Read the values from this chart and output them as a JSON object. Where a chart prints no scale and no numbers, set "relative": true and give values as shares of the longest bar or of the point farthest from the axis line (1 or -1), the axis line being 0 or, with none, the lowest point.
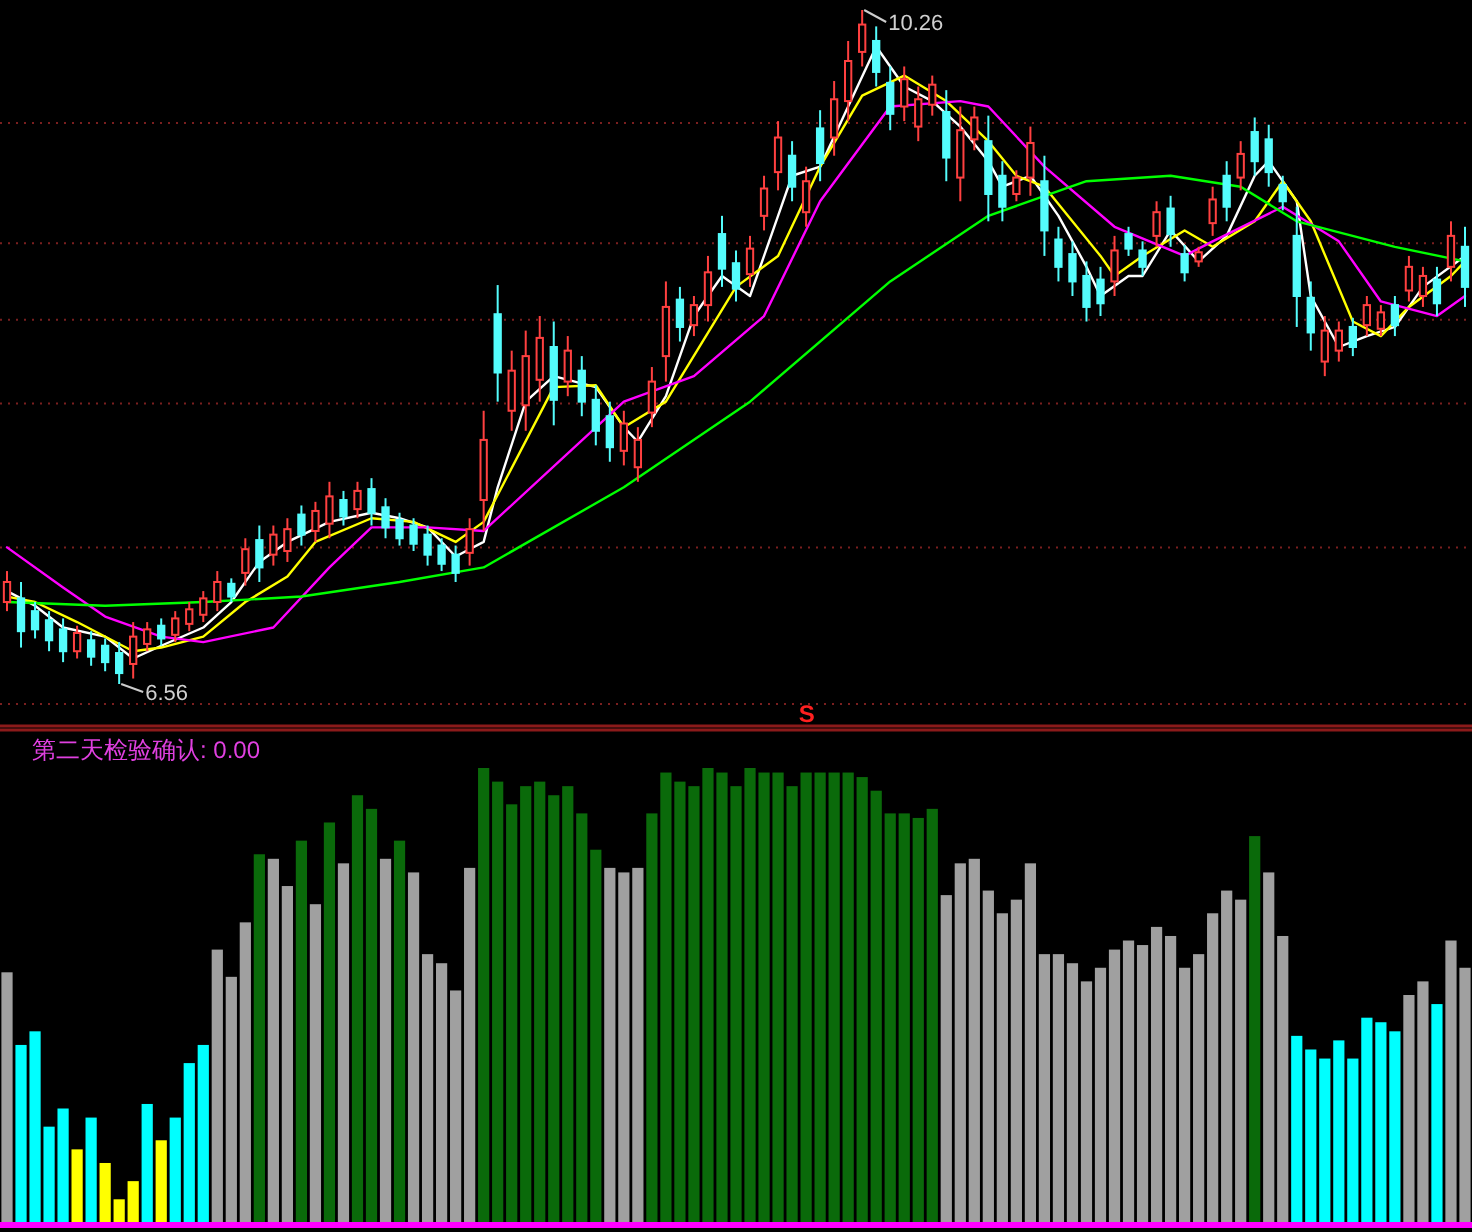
{
  "chart_data": [
    {
      "type": "candlestick",
      "categories": [
        null,
        null,
        null,
        null,
        null,
        null,
        null,
        null,
        null,
        null,
        null,
        null,
        null,
        null,
        null,
        null,
        null,
        null,
        null,
        null,
        null,
        null,
        null,
        null,
        null,
        null,
        null,
        null,
        null,
        null,
        null,
        null,
        null,
        null,
        null,
        null,
        null,
        null,
        null,
        null,
        null,
        null,
        null,
        null,
        null,
        null,
        null,
        null,
        null,
        null,
        null,
        null,
        null,
        null,
        null,
        null,
        null,
        null,
        null,
        null,
        null,
        null,
        null,
        null,
        null,
        null,
        null,
        null,
        null,
        null,
        null,
        null,
        null,
        null,
        null,
        null,
        null,
        null,
        null,
        null,
        null,
        null,
        null,
        null,
        null,
        null,
        null,
        null,
        null,
        null,
        null,
        null,
        null,
        null,
        null,
        null,
        null,
        null,
        null,
        null,
        null,
        null,
        null,
        null,
        null
      ],
      "ohlc": [
        [
          7.01,
          7.18,
          6.96,
          7.12
        ],
        [
          7.03,
          7.12,
          6.76,
          6.85
        ],
        [
          6.96,
          7.01,
          6.81,
          6.86
        ],
        [
          6.91,
          6.96,
          6.74,
          6.8
        ],
        [
          6.86,
          6.92,
          6.68,
          6.74
        ],
        [
          6.74,
          6.88,
          6.7,
          6.84
        ],
        [
          6.8,
          6.85,
          6.66,
          6.71
        ],
        [
          6.77,
          6.81,
          6.63,
          6.68
        ],
        [
          6.73,
          6.79,
          6.56,
          6.62
        ],
        [
          6.67,
          6.9,
          6.59,
          6.82
        ],
        [
          6.78,
          6.9,
          6.74,
          6.86
        ],
        [
          6.88,
          6.92,
          6.77,
          6.81
        ],
        [
          6.83,
          6.96,
          6.79,
          6.92
        ],
        [
          6.89,
          7.01,
          6.85,
          6.97
        ],
        [
          6.94,
          7.07,
          6.9,
          7.03
        ],
        [
          7.01,
          7.18,
          6.96,
          7.12
        ],
        [
          7.11,
          7.14,
          7.01,
          7.04
        ],
        [
          7.17,
          7.36,
          7.1,
          7.3
        ],
        [
          7.35,
          7.43,
          7.12,
          7.2
        ],
        [
          7.27,
          7.43,
          7.21,
          7.38
        ],
        [
          7.29,
          7.47,
          7.23,
          7.41
        ],
        [
          7.49,
          7.54,
          7.32,
          7.38
        ],
        [
          7.4,
          7.56,
          7.34,
          7.51
        ],
        [
          7.44,
          7.67,
          7.36,
          7.59
        ],
        [
          7.57,
          7.62,
          7.43,
          7.48
        ],
        [
          7.52,
          7.67,
          7.47,
          7.62
        ],
        [
          7.63,
          7.69,
          7.43,
          7.5
        ],
        [
          7.53,
          7.58,
          7.36,
          7.42
        ],
        [
          7.46,
          7.5,
          7.32,
          7.36
        ],
        [
          7.43,
          7.47,
          7.29,
          7.33
        ],
        [
          7.38,
          7.43,
          7.21,
          7.27
        ],
        [
          7.32,
          7.36,
          7.18,
          7.22
        ],
        [
          7.27,
          7.32,
          7.12,
          7.17
        ],
        [
          7.28,
          7.47,
          7.21,
          7.41
        ],
        [
          7.57,
          8.06,
          7.4,
          7.9
        ],
        [
          8.59,
          8.75,
          8.11,
          8.27
        ],
        [
          8.06,
          8.39,
          7.95,
          8.28
        ],
        [
          8.09,
          8.5,
          7.95,
          8.36
        ],
        [
          8.23,
          8.58,
          8.11,
          8.46
        ],
        [
          8.41,
          8.55,
          7.98,
          8.12
        ],
        [
          8.22,
          8.47,
          8.14,
          8.39
        ],
        [
          8.28,
          8.36,
          8.03,
          8.11
        ],
        [
          8.12,
          8.2,
          7.87,
          7.95
        ],
        [
          8.03,
          8.11,
          7.78,
          7.86
        ],
        [
          7.84,
          8.06,
          7.76,
          7.99
        ],
        [
          7.75,
          7.97,
          7.67,
          7.9
        ],
        [
          8.05,
          8.3,
          7.97,
          8.22
        ],
        [
          8.36,
          8.77,
          8.22,
          8.63
        ],
        [
          8.67,
          8.74,
          8.44,
          8.52
        ],
        [
          8.53,
          8.69,
          8.47,
          8.64
        ],
        [
          8.64,
          8.91,
          8.55,
          8.82
        ],
        [
          9.03,
          9.13,
          8.74,
          8.84
        ],
        [
          8.87,
          8.94,
          8.66,
          8.73
        ],
        [
          8.81,
          9.02,
          8.74,
          8.95
        ],
        [
          9.13,
          9.35,
          9.05,
          9.28
        ],
        [
          9.37,
          9.65,
          9.27,
          9.56
        ],
        [
          9.46,
          9.54,
          9.21,
          9.29
        ],
        [
          9.15,
          9.4,
          9.07,
          9.32
        ],
        [
          9.61,
          9.71,
          9.32,
          9.42
        ],
        [
          9.56,
          9.87,
          9.46,
          9.77
        ],
        [
          9.76,
          10.09,
          9.65,
          9.98
        ],
        [
          10.03,
          10.26,
          9.95,
          10.18
        ],
        [
          10.09,
          10.17,
          9.84,
          9.92
        ],
        [
          9.86,
          9.95,
          9.6,
          9.69
        ],
        [
          9.73,
          9.95,
          9.65,
          9.88
        ],
        [
          9.62,
          9.84,
          9.54,
          9.77
        ],
        [
          9.74,
          9.9,
          9.68,
          9.85
        ],
        [
          9.7,
          9.82,
          9.32,
          9.45
        ],
        [
          9.34,
          9.73,
          9.21,
          9.6
        ],
        [
          9.55,
          9.73,
          9.49,
          9.67
        ],
        [
          9.54,
          9.68,
          9.1,
          9.25
        ],
        [
          9.35,
          9.43,
          9.1,
          9.18
        ],
        [
          9.25,
          9.38,
          9.21,
          9.34
        ],
        [
          9.34,
          9.62,
          9.24,
          9.53
        ],
        [
          9.32,
          9.46,
          8.91,
          9.05
        ],
        [
          9.0,
          9.07,
          8.77,
          8.85
        ],
        [
          8.92,
          8.99,
          8.69,
          8.77
        ],
        [
          8.8,
          8.88,
          8.55,
          8.63
        ],
        [
          8.78,
          8.85,
          8.58,
          8.65
        ],
        [
          8.77,
          9.02,
          8.69,
          8.94
        ],
        [
          9.03,
          9.07,
          8.91,
          8.95
        ],
        [
          8.94,
          8.99,
          8.8,
          8.85
        ],
        [
          9.02,
          9.21,
          8.96,
          9.15
        ],
        [
          9.17,
          9.24,
          8.96,
          9.03
        ],
        [
          8.92,
          8.97,
          8.77,
          8.82
        ],
        [
          8.88,
          8.96,
          8.85,
          8.93
        ],
        [
          9.09,
          9.29,
          9.02,
          9.22
        ],
        [
          9.35,
          9.43,
          9.1,
          9.18
        ],
        [
          9.34,
          9.54,
          9.27,
          9.47
        ],
        [
          9.59,
          9.67,
          9.35,
          9.43
        ],
        [
          9.55,
          9.63,
          9.29,
          9.37
        ],
        [
          9.3,
          9.35,
          9.16,
          9.21
        ],
        [
          9.02,
          9.18,
          8.52,
          8.69
        ],
        [
          8.68,
          8.77,
          8.39,
          8.49
        ],
        [
          8.33,
          8.58,
          8.25,
          8.5
        ],
        [
          8.39,
          8.55,
          8.33,
          8.5
        ],
        [
          8.52,
          8.57,
          8.36,
          8.41
        ],
        [
          8.53,
          8.69,
          8.47,
          8.64
        ],
        [
          8.51,
          8.64,
          8.47,
          8.6
        ],
        [
          8.64,
          8.69,
          8.47,
          8.53
        ],
        [
          8.72,
          8.91,
          8.66,
          8.85
        ],
        [
          8.69,
          8.85,
          8.63,
          8.8
        ],
        [
          8.78,
          8.85,
          8.58,
          8.65
        ],
        [
          8.85,
          9.1,
          8.77,
          9.02
        ],
        [
          8.96,
          9.07,
          8.63,
          8.74
        ]
      ],
      "series": [
        {
          "type": "line",
          "color": "#ffffff",
          "values": [
            7.07,
            null,
            6.99,
            null,
            6.87,
            null,
            null,
            6.82,
            null,
            6.7,
            null,
            6.77,
            null,
            null,
            6.87,
            null,
            7.01,
            null,
            7.23,
            null,
            7.34,
            null,
            null,
            7.45,
            null,
            null,
            7.5,
            null,
            7.47,
            null,
            7.42,
            null,
            7.26,
            null,
            7.34,
            7.64,
            null,
            8.11,
            null,
            8.25,
            null,
            null,
            8.19,
            null,
            7.97,
            7.89,
            null,
            8.14,
            null,
            8.58,
            null,
            8.8,
            null,
            8.69,
            null,
            9.13,
            9.35,
            null,
            9.4,
            null,
            9.73,
            null,
            10.06,
            null,
            9.84,
            null,
            9.76,
            null,
            9.62,
            null,
            9.43,
            9.29,
            null,
            9.35,
            null,
            9.13,
            null,
            8.85,
            8.69,
            null,
            8.8,
            8.8,
            null,
            9.05,
            null,
            8.88,
            null,
            9.02,
            null,
            9.35,
            9.43,
            null,
            9.21,
            8.69,
            null,
            8.41,
            null,
            8.47,
            null,
            8.52,
            null,
            8.74,
            null,
            null,
            8.91
          ]
        },
        {
          "type": "line",
          "color": "#ffff00",
          "values": [
            7.04,
            null,
            7.01,
            null,
            null,
            6.9,
            null,
            null,
            null,
            6.74,
            null,
            6.76,
            null,
            null,
            6.82,
            null,
            null,
            7.01,
            null,
            null,
            7.15,
            null,
            7.34,
            null,
            null,
            null,
            7.47,
            null,
            null,
            7.45,
            null,
            null,
            7.34,
            null,
            7.45,
            null,
            null,
            null,
            null,
            8.19,
            null,
            null,
            8.2,
            null,
            7.97,
            null,
            null,
            8.11,
            null,
            null,
            null,
            null,
            8.74,
            null,
            null,
            8.91,
            null,
            null,
            9.4,
            null,
            null,
            9.79,
            null,
            null,
            9.9,
            null,
            null,
            9.76,
            null,
            null,
            9.54,
            null,
            9.35,
            null,
            9.29,
            null,
            null,
            null,
            8.91,
            8.8,
            null,
            8.91,
            null,
            null,
            9.05,
            null,
            8.96,
            null,
            null,
            9.1,
            null,
            9.32,
            null,
            9.1,
            null,
            null,
            8.55,
            null,
            8.47,
            null,
            8.63,
            null,
            null,
            8.8,
            8.88
          ]
        },
        {
          "type": "line",
          "color": "#ff00ff",
          "values": [
            7.31,
            null,
            null,
            null,
            7.09,
            null,
            null,
            6.93,
            null,
            null,
            null,
            6.82,
            null,
            null,
            6.79,
            null,
            null,
            null,
            null,
            6.87,
            null,
            null,
            null,
            7.2,
            null,
            null,
            7.42,
            null,
            null,
            null,
            7.42,
            null,
            null,
            null,
            7.4,
            null,
            null,
            null,
            null,
            null,
            null,
            null,
            null,
            null,
            8.11,
            null,
            null,
            null,
            null,
            8.25,
            null,
            null,
            null,
            null,
            8.58,
            null,
            null,
            null,
            9.21,
            null,
            null,
            null,
            null,
            9.73,
            null,
            null,
            null,
            null,
            9.76,
            null,
            9.73,
            null,
            null,
            null,
            9.4,
            null,
            null,
            null,
            null,
            9.07,
            null,
            null,
            null,
            null,
            8.91,
            null,
            8.99,
            null,
            null,
            null,
            null,
            9.18,
            null,
            null,
            null,
            8.99,
            null,
            null,
            8.66,
            null,
            null,
            null,
            8.58,
            null,
            8.69
          ]
        },
        {
          "type": "line",
          "color": "#00ff00",
          "values": [
            7.01,
            null,
            null,
            null,
            null,
            null,
            null,
            6.99,
            null,
            null,
            null,
            null,
            null,
            null,
            7.01,
            null,
            null,
            null,
            null,
            null,
            null,
            7.04,
            null,
            null,
            null,
            null,
            null,
            null,
            7.12,
            null,
            null,
            null,
            null,
            null,
            7.2,
            null,
            null,
            null,
            null,
            null,
            null,
            null,
            null,
            null,
            7.64,
            null,
            null,
            null,
            null,
            null,
            null,
            null,
            null,
            8.11,
            null,
            null,
            null,
            null,
            null,
            null,
            null,
            null,
            null,
            8.77,
            null,
            null,
            null,
            null,
            null,
            null,
            9.13,
            null,
            null,
            null,
            null,
            null,
            null,
            9.32,
            null,
            null,
            null,
            null,
            null,
            9.35,
            null,
            null,
            null,
            null,
            9.29,
            null,
            null,
            null,
            9.1,
            null,
            null,
            null,
            null,
            null,
            null,
            8.96,
            null,
            null,
            null,
            null,
            8.88
          ]
        }
      ],
      "yticks": [
        {
          "value": 9.64,
          "label": null
        },
        {
          "value": 8.98,
          "label": null
        },
        {
          "value": 8.56,
          "label": null
        },
        {
          "value": 8.1,
          "label": null
        },
        {
          "value": 7.31,
          "label": null
        },
        {
          "value": 6.45,
          "label": null
        }
      ],
      "grid": "y",
      "annotations": [
        "10.26",
        "6.56",
        "S"
      ]
    },
    {
      "type": "bar",
      "categories": [
        null,
        null,
        null,
        null,
        null,
        null,
        null,
        null,
        null,
        null,
        null,
        null,
        null,
        null,
        null,
        null,
        null,
        null,
        null,
        null,
        null,
        null,
        null,
        null,
        null,
        null,
        null,
        null,
        null,
        null,
        null,
        null,
        null,
        null,
        null,
        null,
        null,
        null,
        null,
        null,
        null,
        null,
        null,
        null,
        null,
        null,
        null,
        null,
        null,
        null,
        null,
        null,
        null,
        null,
        null,
        null,
        null,
        null,
        null,
        null,
        null,
        null,
        null,
        null,
        null,
        null,
        null,
        null,
        null,
        null,
        null,
        null,
        null,
        null,
        null,
        null,
        null,
        null,
        null,
        null,
        null,
        null,
        null,
        null,
        null,
        null,
        null,
        null,
        null,
        null,
        null,
        null,
        null,
        null,
        null,
        null,
        null,
        null,
        null,
        null,
        null,
        null,
        null,
        null,
        null
      ],
      "relative": true,
      "values": [
        0.55,
        0.39,
        0.42,
        0.21,
        0.25,
        0.16,
        0.23,
        0.13,
        0.05,
        0.09,
        0.26,
        0.18,
        0.23,
        0.35,
        0.39,
        0.6,
        0.54,
        0.66,
        0.81,
        0.8,
        0.74,
        0.84,
        0.7,
        0.88,
        0.79,
        0.94,
        0.91,
        0.8,
        0.84,
        0.77,
        0.59,
        0.57,
        0.51,
        0.78,
        1,
        0.97,
        0.92,
        0.96,
        0.97,
        0.94,
        0.96,
        0.9,
        0.82,
        0.78,
        0.77,
        0.78,
        0.9,
        0.99,
        0.97,
        0.96,
        1,
        0.99,
        0.96,
        1,
        0.99,
        0.99,
        0.96,
        0.99,
        0.99,
        0.99,
        0.99,
        0.98,
        0.95,
        0.9,
        0.9,
        0.89,
        0.91,
        0.72,
        0.79,
        0.8,
        0.73,
        0.68,
        0.71,
        0.79,
        0.59,
        0.59,
        0.57,
        0.53,
        0.56,
        0.6,
        0.62,
        0.61,
        0.65,
        0.63,
        0.56,
        0.59,
        0.68,
        0.73,
        0.71,
        0.85,
        0.77,
        0.63,
        0.41,
        0.38,
        0.36,
        0.4,
        0.36,
        0.45,
        0.44,
        0.42,
        0.5,
        0.53,
        0.48,
        0.62,
        0.56
      ],
      "colors": [
        "#a0a0a0",
        "#00ffff",
        "#00ffff",
        "#00ffff",
        "#00ffff",
        "#ffff00",
        "#00ffff",
        "#ffff00",
        "#ffff00",
        "#ffff00",
        "#00ffff",
        "#ffff00",
        "#00ffff",
        "#00ffff",
        "#00ffff",
        "#a0a0a0",
        "#a0a0a0",
        "#a0a0a0",
        "#0a6a0a",
        "#a0a0a0",
        "#a0a0a0",
        "#0a6a0a",
        "#a0a0a0",
        "#0a6a0a",
        "#a0a0a0",
        "#0a6a0a",
        "#0a6a0a",
        "#a0a0a0",
        "#0a6a0a",
        "#a0a0a0",
        "#a0a0a0",
        "#a0a0a0",
        "#a0a0a0",
        "#a0a0a0",
        "#0a6a0a",
        "#0a6a0a",
        "#0a6a0a",
        "#0a6a0a",
        "#0a6a0a",
        "#0a6a0a",
        "#0a6a0a",
        "#0a6a0a",
        "#0a6a0a",
        "#a0a0a0",
        "#a0a0a0",
        "#a0a0a0",
        "#0a6a0a",
        "#0a6a0a",
        "#0a6a0a",
        "#0a6a0a",
        "#0a6a0a",
        "#0a6a0a",
        "#0a6a0a",
        "#0a6a0a",
        "#0a6a0a",
        "#0a6a0a",
        "#0a6a0a",
        "#0a6a0a",
        "#0a6a0a",
        "#0a6a0a",
        "#0a6a0a",
        "#0a6a0a",
        "#0a6a0a",
        "#0a6a0a",
        "#0a6a0a",
        "#0a6a0a",
        "#0a6a0a",
        "#a0a0a0",
        "#a0a0a0",
        "#a0a0a0",
        "#a0a0a0",
        "#a0a0a0",
        "#a0a0a0",
        "#a0a0a0",
        "#a0a0a0",
        "#a0a0a0",
        "#a0a0a0",
        "#a0a0a0",
        "#a0a0a0",
        "#a0a0a0",
        "#a0a0a0",
        "#a0a0a0",
        "#a0a0a0",
        "#a0a0a0",
        "#a0a0a0",
        "#a0a0a0",
        "#a0a0a0",
        "#a0a0a0",
        "#a0a0a0",
        "#0a6a0a",
        "#a0a0a0",
        "#a0a0a0",
        "#00ffff",
        "#00ffff",
        "#00ffff",
        "#00ffff",
        "#00ffff",
        "#00ffff",
        "#00ffff",
        "#00ffff",
        "#a0a0a0",
        "#a0a0a0",
        "#00ffff",
        "#a0a0a0",
        "#a0a0a0"
      ],
      "annotations": [
        "第二天检验确认: 0.00"
      ]
    }
  ]
}
